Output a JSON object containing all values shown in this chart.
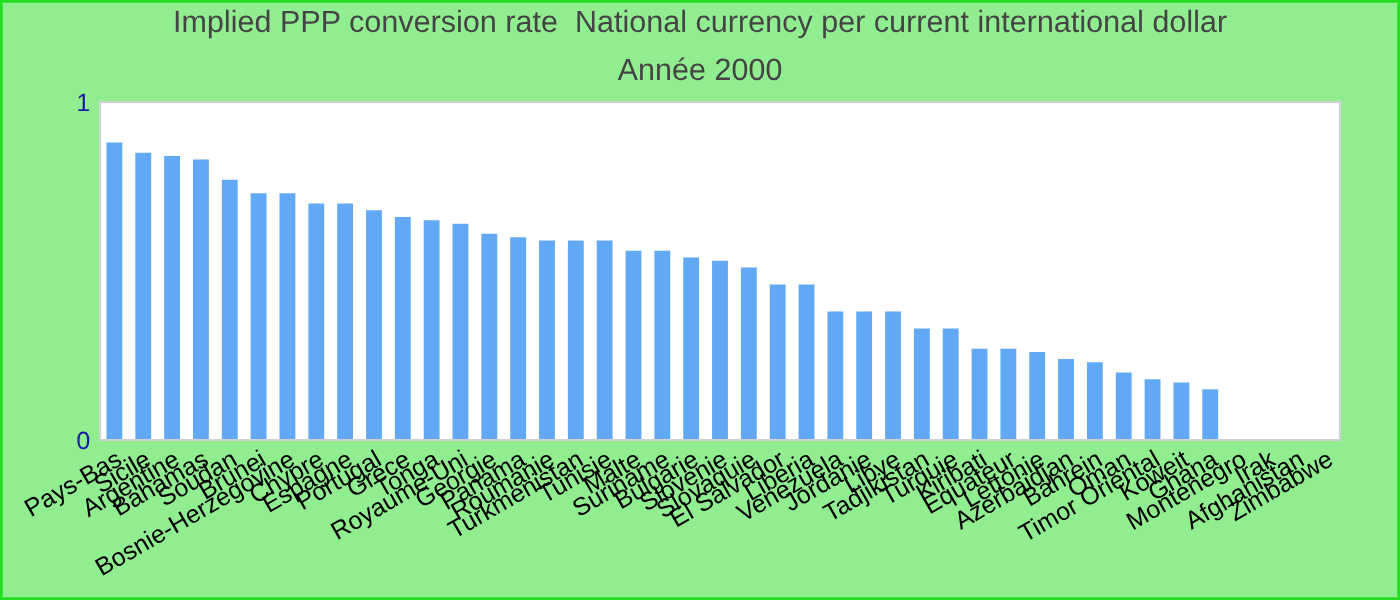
{
  "chart_data": {
    "type": "bar",
    "title": "Implied PPP conversion rate  National currency per current international dollar",
    "subtitle": "Année 2000",
    "categories": [
      "Pays-Bas",
      "Sicile",
      "Argentine",
      "Bahamas",
      "Soudan",
      "Brunei",
      "Bosnie-Herzegovine",
      "Chypre",
      "Espagne",
      "Portugal",
      "Grece",
      "Tonga",
      "Royaume-Uni",
      "Georgie",
      "Panama",
      "Roumanie",
      "Turkmenistan",
      "Tunisie",
      "Malte",
      "Suriname",
      "Bulgarie",
      "Slovenie",
      "Slovaquie",
      "El Salvador",
      "Liberia",
      "Venezuela",
      "Jordanie",
      "Libye",
      "Tadjikistan",
      "Turquie",
      "Kiribati",
      "Equateur",
      "Lettonie",
      "Azerbaidjan",
      "Bahrein",
      "Oman",
      "Timor Oriental",
      "Koweit",
      "Ghana",
      "Montenegro",
      "Irak",
      "Afghanistan",
      "Zimbabwe"
    ],
    "values": [
      0.88,
      0.85,
      0.84,
      0.83,
      0.77,
      0.73,
      0.73,
      0.7,
      0.7,
      0.68,
      0.66,
      0.65,
      0.64,
      0.61,
      0.6,
      0.59,
      0.59,
      0.59,
      0.56,
      0.56,
      0.54,
      0.53,
      0.51,
      0.46,
      0.46,
      0.38,
      0.38,
      0.38,
      0.33,
      0.33,
      0.27,
      0.27,
      0.26,
      0.24,
      0.23,
      0.2,
      0.18,
      0.17,
      0.15,
      null,
      null,
      null,
      null
    ],
    "color": "#62a9f5",
    "ylim": [
      0,
      1
    ],
    "yticks": [
      0,
      1
    ],
    "grid": false,
    "legend": false
  }
}
